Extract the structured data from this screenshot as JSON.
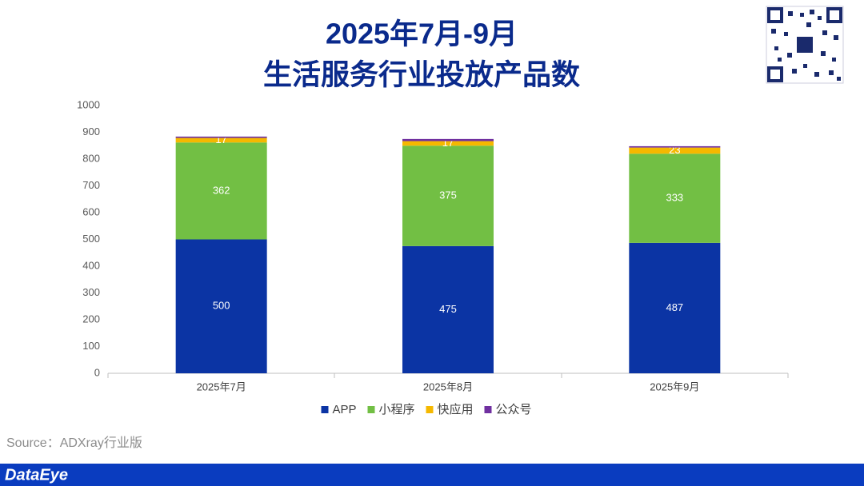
{
  "chart_data": {
    "type": "stacked_bar",
    "title": "2025年7月-9月",
    "subtitle": "生活服务行业投放产品数",
    "categories": [
      "2025年7月",
      "2025年8月",
      "2025年9月"
    ],
    "series": [
      {
        "name": "APP",
        "color": "#0b34a4",
        "values": [
          500,
          475,
          487
        ]
      },
      {
        "name": "小程序",
        "color": "#72bf44",
        "values": [
          362,
          375,
          333
        ]
      },
      {
        "name": "快应用",
        "color": "#f5b800",
        "values": [
          17,
          17,
          23
        ]
      },
      {
        "name": "公众号",
        "color": "#7030a0",
        "values": [
          5,
          8,
          5
        ]
      }
    ],
    "labeled_series": [
      0,
      1,
      2
    ],
    "ylim": [
      0,
      1000
    ],
    "yticks": [
      0,
      100,
      200,
      300,
      400,
      500,
      600,
      700,
      800,
      900,
      1000
    ],
    "grid": false,
    "legend": "bottom"
  },
  "source": "Source：ADXray行业版",
  "brand": "DataEye"
}
